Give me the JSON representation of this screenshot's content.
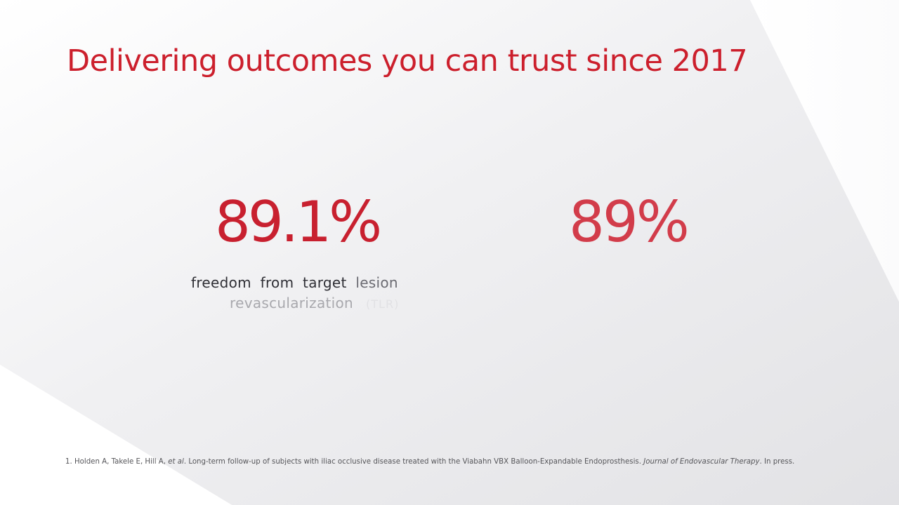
{
  "slide": {
    "title": "Delivering outcomes you can trust since 2017",
    "accent_color": "#cc1f2c"
  },
  "stats": [
    {
      "value": "89.1%",
      "caption_line1": [
        "freedom",
        "from",
        "target",
        "lesion"
      ],
      "caption_line2": "revascularization",
      "caption_suffix": "(TLR)"
    },
    {
      "value": "89%"
    }
  ],
  "footnote": {
    "number": "1.",
    "authors": "Holden A, Takele E, Hill A,",
    "et_al": "et al",
    "text": ". Long-term follow-up of subjects with iliac occlusive disease treated with the Viabahn VBX Balloon-Expandable Endoprosthesis.",
    "journal": "Journal of Endovascular Therapy",
    "status": ". In press."
  }
}
